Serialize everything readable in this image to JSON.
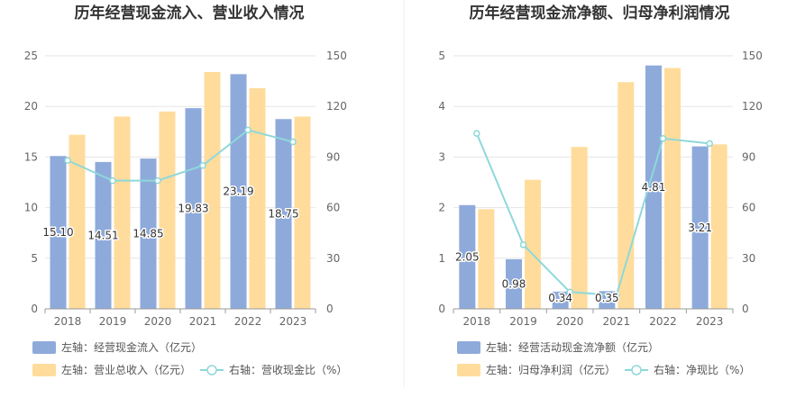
{
  "charts": [
    {
      "title": "历年经营现金流入、营业收入情况",
      "categories": [
        "2018",
        "2019",
        "2020",
        "2021",
        "2022",
        "2023"
      ],
      "left_axis": {
        "min": 0,
        "max": 25,
        "ticks": [
          "0",
          "5",
          "10",
          "15",
          "20",
          "25"
        ]
      },
      "right_axis": {
        "min": 0,
        "max": 150,
        "ticks": [
          "0",
          "30",
          "60",
          "90",
          "120",
          "150"
        ]
      },
      "series": [
        {
          "name": "左轴：经营现金流入（亿元）",
          "type": "bar",
          "axis": "left",
          "color": "#8eaadb",
          "values": [
            15.1,
            14.51,
            14.85,
            19.83,
            23.19,
            18.75
          ],
          "labels": [
            "15.10",
            "14.51",
            "14.85",
            "19.83",
            "23.19",
            "18.75"
          ]
        },
        {
          "name": "左轴：营业总收入（亿元）",
          "type": "bar",
          "axis": "left",
          "color": "#ffdc9c",
          "values": [
            17.2,
            19.0,
            19.5,
            23.4,
            21.8,
            19.0
          ]
        },
        {
          "name": "右轴：营收现金比（%）",
          "type": "line",
          "axis": "right",
          "color": "#8ed8da",
          "values": [
            88,
            76,
            76,
            85,
            106,
            99
          ]
        }
      ]
    },
    {
      "title": "历年经营现金流净额、归母净利润情况",
      "categories": [
        "2018",
        "2019",
        "2020",
        "2021",
        "2022",
        "2023"
      ],
      "left_axis": {
        "min": 0,
        "max": 5,
        "ticks": [
          "0",
          "1",
          "2",
          "3",
          "4",
          "5"
        ]
      },
      "right_axis": {
        "min": 0,
        "max": 150,
        "ticks": [
          "0",
          "30",
          "60",
          "90",
          "120",
          "150"
        ]
      },
      "series": [
        {
          "name": "左轴：经营活动现金流净额（亿元）",
          "type": "bar",
          "axis": "left",
          "color": "#8eaadb",
          "values": [
            2.05,
            0.98,
            0.34,
            0.35,
            4.81,
            3.21
          ],
          "labels": [
            "2.05",
            "0.98",
            "0.34",
            "0.35",
            "4.81",
            "3.21"
          ]
        },
        {
          "name": "左轴：归母净利润（亿元）",
          "type": "bar",
          "axis": "left",
          "color": "#ffdc9c",
          "values": [
            1.97,
            2.55,
            3.2,
            4.48,
            4.76,
            3.25
          ]
        },
        {
          "name": "右轴：净现比（%）",
          "type": "line",
          "axis": "right",
          "color": "#8ed8da",
          "values": [
            104,
            38,
            10,
            8,
            101,
            98
          ]
        }
      ]
    }
  ]
}
